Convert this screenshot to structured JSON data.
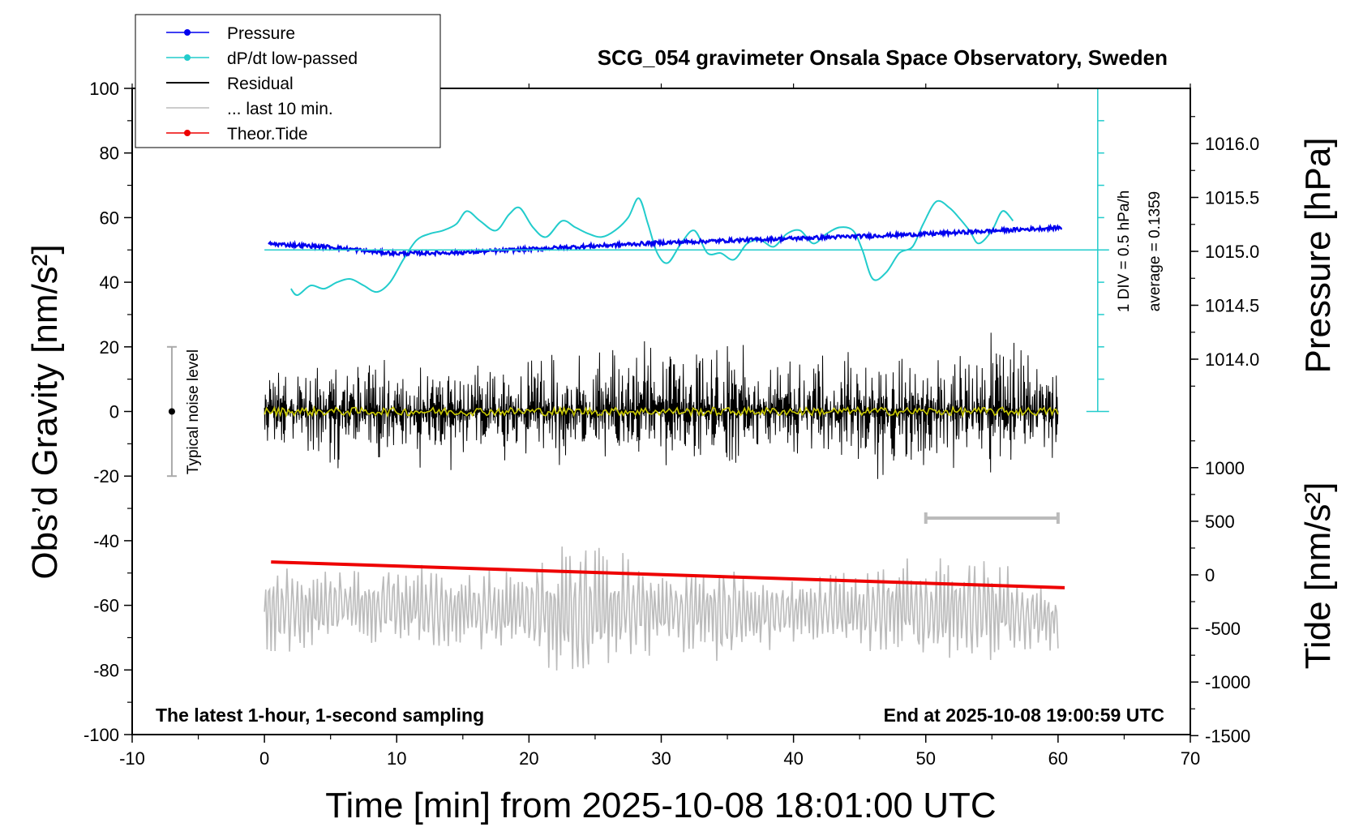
{
  "chart_data": {
    "type": "line",
    "title": "SCG_054 gravimeter Onsala Space Observatory, Sweden",
    "xlabel": "Time [min] from 2025-10-08 18:01:00 UTC",
    "ylabel_left": "Obs’d Gravity [nm/s²]",
    "ylabel_right_pressure": "Pressure [hPa]",
    "ylabel_right_tide": "Tide [nm/s²]",
    "xlim": [
      -10,
      70
    ],
    "ylim": [
      -100,
      100
    ],
    "x_ticks": [
      -10,
      0,
      10,
      20,
      30,
      40,
      50,
      60,
      70
    ],
    "y_ticks": [
      -100,
      -80,
      -60,
      -40,
      -20,
      0,
      20,
      40,
      60,
      80,
      100
    ],
    "pressure_ticks": [
      "1016.0",
      "1015.5",
      "1015.0",
      "1014.5",
      "1014.0"
    ],
    "pressure_tick_values": [
      1016.0,
      1015.5,
      1015.0,
      1014.5,
      1014.0
    ],
    "tide_ticks": [
      "1000",
      "500",
      "0",
      "-500",
      "-1000",
      "-1500"
    ],
    "tide_tick_values": [
      1000,
      500,
      0,
      -500,
      -1000,
      -1500
    ],
    "grid": false,
    "legend_position": "top-left",
    "legend": [
      {
        "label": "Pressure",
        "color": "#0000ee",
        "marker": true
      },
      {
        "label": "dP/dt low-passed",
        "color": "#22cccc",
        "marker": true
      },
      {
        "label": "Residual",
        "color": "#000000",
        "marker": false
      },
      {
        "label": "... last 10 min.",
        "color": "#bbbbbb",
        "marker": false
      },
      {
        "label": "Theor.Tide",
        "color": "#ee0000",
        "marker": true
      }
    ],
    "annotations": {
      "noise_level": "Typical noise level",
      "dpdt_scale": "1 DIV = 0.5 hPa/h",
      "dpdt_average": "average = 0.1359",
      "bottom_left": "The latest 1-hour, 1-second sampling",
      "bottom_right": "End at 2025-10-08 19:00:59 UTC"
    },
    "noise_level_range": [
      -20,
      20
    ],
    "noise_level_x": -7,
    "last10_bracket_x": [
      50,
      60
    ],
    "series": [
      {
        "name": "Pressure",
        "color": "#0000ee",
        "axis": "pressure",
        "x": [
          0.3,
          5,
          8,
          10,
          15,
          20,
          25,
          30,
          35,
          40,
          45,
          50,
          55,
          60.3
        ],
        "values": [
          1015.07,
          1015.04,
          1015.0,
          1014.98,
          1014.99,
          1015.02,
          1015.05,
          1015.08,
          1015.1,
          1015.12,
          1015.14,
          1015.16,
          1015.19,
          1015.22
        ]
      },
      {
        "name": "dP/dt low-passed",
        "color": "#22cccc",
        "axis": "left",
        "x": [
          2,
          2.5,
          3.5,
          4.5,
          5.5,
          6.5,
          7.5,
          8.5,
          9.5,
          10.5,
          11.5,
          12.5,
          13.5,
          14.5,
          15.3,
          16.3,
          17.5,
          18.5,
          19.3,
          20.3,
          21.3,
          22.5,
          23.5,
          24.5,
          25.5,
          26.5,
          27.5,
          28.3,
          29,
          29.7,
          30.5,
          31.5,
          32.5,
          33.5,
          34.5,
          35.5,
          36.5,
          37.5,
          38.5,
          39.5,
          40.5,
          41.5,
          42.5,
          43.5,
          44.5,
          45.2,
          46,
          47,
          48,
          49,
          49.8,
          50.8,
          51.8,
          52.5,
          53.3,
          54,
          55,
          55.8,
          56.6
        ],
        "values": [
          38,
          36,
          39,
          38,
          40,
          41,
          39,
          37,
          40,
          47,
          53,
          55,
          56,
          58,
          62,
          59,
          56,
          61,
          63,
          57,
          54,
          59,
          57,
          55,
          54,
          56,
          60,
          66,
          58,
          49,
          46,
          52,
          56,
          49,
          49,
          47,
          52,
          53,
          51,
          55,
          56,
          52,
          55,
          57,
          56,
          50,
          41,
          43,
          49,
          51,
          58,
          65,
          63,
          60,
          56,
          52,
          56,
          62,
          59
        ]
      },
      {
        "name": "Residual",
        "color": "#000000",
        "axis": "left",
        "x": [
          0,
          5,
          10,
          15,
          20,
          25,
          28.5,
          30,
          35,
          40,
          44.5,
          50,
          54,
          60
        ],
        "values": [
          0,
          0,
          0,
          0,
          0,
          0,
          0,
          0,
          0,
          0,
          0,
          0,
          0,
          0
        ],
        "envelope_min": [
          -12,
          -20,
          -18,
          -20,
          -18,
          -20,
          -19,
          -18,
          -20,
          -19,
          -26,
          -19,
          -24,
          -15
        ],
        "envelope_max": [
          15,
          20,
          18,
          17,
          20,
          22,
          28,
          21,
          23,
          21,
          20,
          22,
          31,
          17
        ]
      },
      {
        "name": "... last 10 min.",
        "color": "#bbbbbb",
        "axis": "left",
        "x": [
          0,
          5,
          10,
          15,
          20,
          23.5,
          30,
          35,
          40,
          45,
          50,
          55,
          60
        ],
        "values": [
          -62,
          -60,
          -60,
          -62,
          -62,
          -62,
          -61,
          -62,
          -62,
          -61,
          -62,
          -61,
          -65
        ],
        "envelope_min": [
          -81,
          -76,
          -75,
          -76,
          -76,
          -86,
          -76,
          -82,
          -76,
          -76,
          -80,
          -78,
          -74
        ],
        "envelope_max": [
          -46,
          -47,
          -48,
          -45,
          -43,
          -31,
          -49,
          -45,
          -50,
          -48,
          -42,
          -42,
          -55
        ]
      },
      {
        "name": "Theor.Tide",
        "color": "#ee0000",
        "axis": "tide",
        "x": [
          0.5,
          60.5
        ],
        "values": [
          120,
          -120
        ]
      }
    ]
  }
}
